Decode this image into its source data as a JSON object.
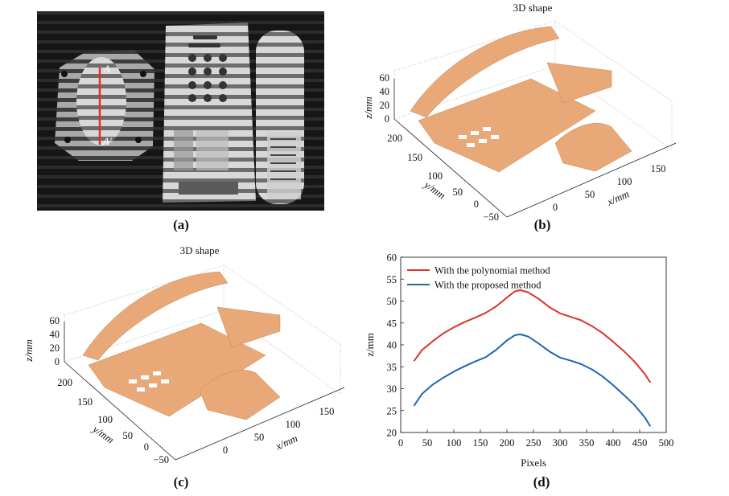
{
  "panel_a": {
    "caption": "(a)",
    "label_A": "A",
    "label_A2": "A'"
  },
  "panel_b": {
    "caption": "(b)",
    "title": "3D shape",
    "zlabel": "z/mm",
    "ylabel": "y/mm",
    "xlabel": "x/mm",
    "zticks": [
      "0",
      "20",
      "40",
      "60"
    ],
    "yticks": [
      "200",
      "150",
      "100",
      "50",
      "0",
      "−50"
    ],
    "xticks": [
      "0",
      "50",
      "100",
      "150"
    ]
  },
  "panel_c": {
    "caption": "(c)",
    "title": "3D shape",
    "zlabel": "z/mm",
    "ylabel": "y/mm",
    "xlabel": "x/mm",
    "zticks": [
      "0",
      "20",
      "40",
      "60"
    ],
    "yticks": [
      "200",
      "150",
      "100",
      "50",
      "0",
      "−50"
    ],
    "xticks": [
      "0",
      "50",
      "100",
      "150"
    ]
  },
  "panel_d": {
    "caption": "(d)"
  },
  "colors": {
    "surface": "#e8a878",
    "red_series": "#d9352b",
    "blue_series": "#1f66b3"
  },
  "chart_data": {
    "type": "line",
    "xlabel": "Pixels",
    "ylabel": "z/mm",
    "xlim": [
      0,
      500
    ],
    "ylim": [
      20,
      60
    ],
    "xticks": [
      0,
      50,
      100,
      150,
      200,
      250,
      300,
      350,
      400,
      450,
      500
    ],
    "yticks": [
      20,
      25,
      30,
      35,
      40,
      45,
      50,
      55,
      60
    ],
    "legend_position": "top-left",
    "series": [
      {
        "name": "With the polynomial method",
        "color": "#d9352b",
        "x": [
          25,
          40,
          60,
          80,
          100,
          120,
          140,
          160,
          180,
          200,
          215,
          225,
          240,
          260,
          280,
          300,
          320,
          340,
          360,
          380,
          400,
          420,
          440,
          460,
          470
        ],
        "y": [
          36.3,
          38.8,
          40.8,
          42.6,
          44.0,
          45.2,
          46.2,
          47.3,
          48.8,
          50.8,
          52.2,
          52.5,
          52.0,
          50.5,
          48.6,
          47.2,
          46.4,
          45.6,
          44.3,
          42.7,
          40.7,
          38.6,
          36.2,
          33.3,
          31.4
        ]
      },
      {
        "name": "With the proposed method",
        "color": "#1f66b3",
        "x": [
          25,
          40,
          60,
          80,
          100,
          120,
          140,
          160,
          180,
          200,
          215,
          225,
          240,
          260,
          280,
          300,
          320,
          340,
          360,
          380,
          400,
          420,
          440,
          460,
          470
        ],
        "y": [
          26.1,
          28.8,
          30.9,
          32.5,
          33.9,
          35.1,
          36.2,
          37.2,
          38.9,
          41.0,
          42.2,
          42.4,
          41.9,
          40.3,
          38.5,
          37.1,
          36.4,
          35.6,
          34.4,
          32.8,
          30.8,
          28.6,
          26.3,
          23.4,
          21.4
        ]
      }
    ]
  }
}
